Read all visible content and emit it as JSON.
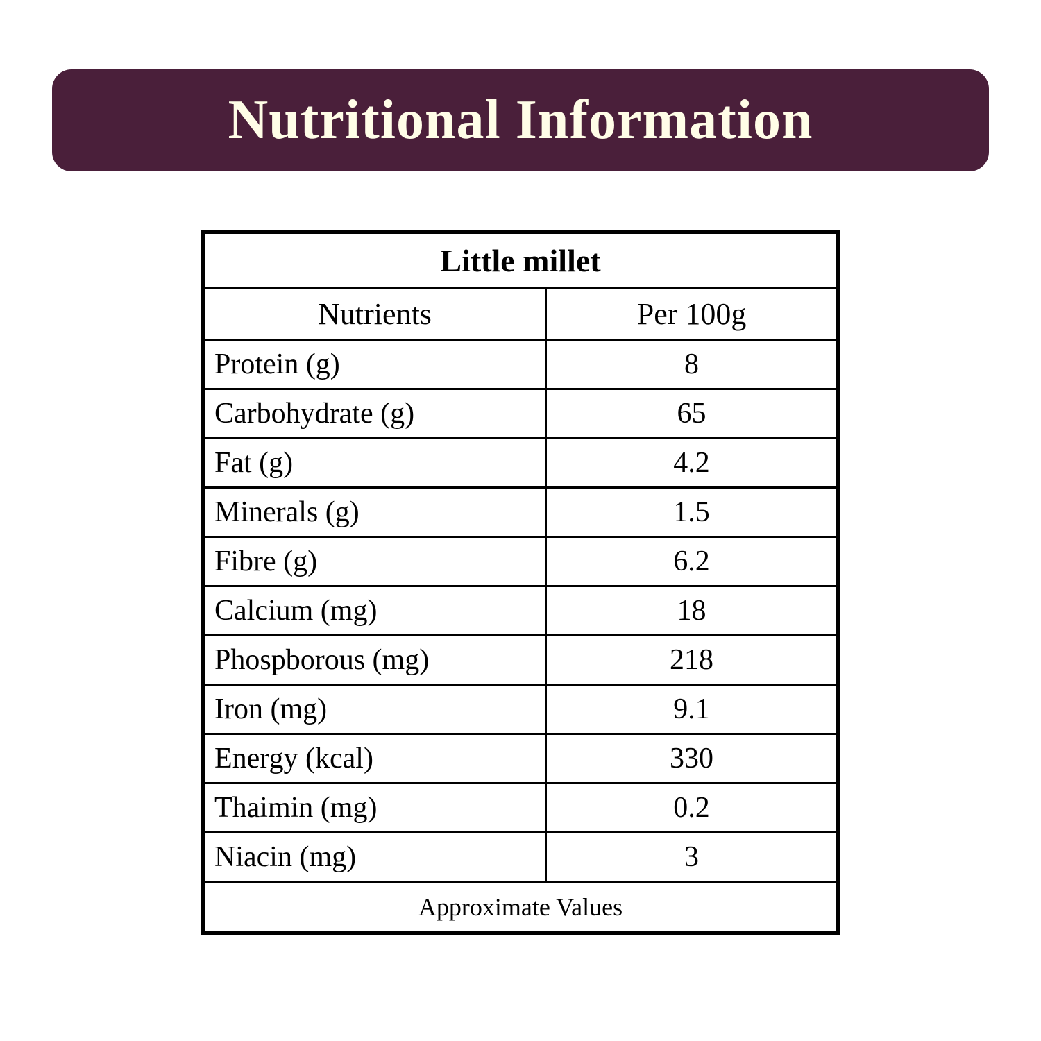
{
  "title": "Nutritional Information",
  "table": {
    "caption": "Little millet",
    "columns": [
      "Nutrients",
      "Per 100g"
    ],
    "rows": [
      [
        "Protein (g)",
        "8"
      ],
      [
        "Carbohydrate (g)",
        "65"
      ],
      [
        "Fat (g)",
        "4.2"
      ],
      [
        "Minerals (g)",
        "1.5"
      ],
      [
        "Fibre (g)",
        "6.2"
      ],
      [
        "Calcium (mg)",
        "18"
      ],
      [
        "Phospborous (mg)",
        "218"
      ],
      [
        "Iron (mg)",
        "9.1"
      ],
      [
        "Energy (kcal)",
        "330"
      ],
      [
        "Thaimin (mg)",
        "0.2"
      ],
      [
        "Niacin (mg)",
        "3"
      ]
    ],
    "footer": "Approximate Values"
  },
  "colors": {
    "title_bg": "#4a1f3a",
    "title_text": "#fffde7",
    "border": "#000000",
    "background": "#ffffff"
  },
  "fonts": {
    "title_size": 80,
    "caption_size": 46,
    "header_size": 44,
    "cell_size": 42,
    "footer_size": 36
  }
}
